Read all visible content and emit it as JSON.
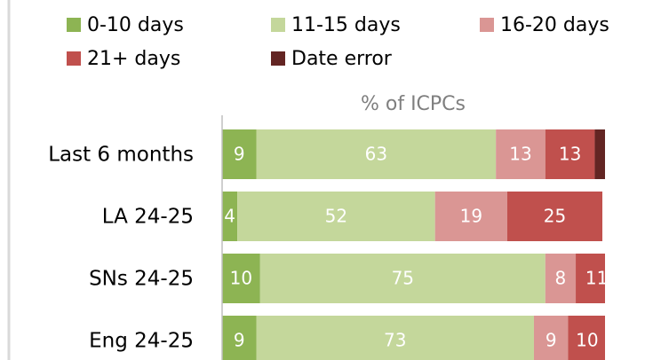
{
  "chart_data": {
    "type": "stacked-bar-horizontal",
    "x_label": "% of ICPCs",
    "categories": [
      "Last 6 months",
      "LA 24-25",
      "SNs 24-25",
      "Eng 24-25"
    ],
    "series": [
      {
        "name": "0-10 days",
        "color": "#8db453",
        "values": [
          9,
          4,
          10,
          9
        ]
      },
      {
        "name": "11-15 days",
        "color": "#c4d79b",
        "values": [
          63,
          52,
          75,
          73
        ]
      },
      {
        "name": "16-20 days",
        "color": "#da9694",
        "values": [
          13,
          19,
          8,
          9
        ]
      },
      {
        "name": "21+ days",
        "color": "#c0504d",
        "values": [
          13,
          25,
          11,
          10
        ]
      },
      {
        "name": "Date error",
        "color": "#632523",
        "values": [
          3,
          0,
          0,
          0
        ]
      }
    ],
    "xlim": [
      0,
      100
    ],
    "legend": "top"
  }
}
